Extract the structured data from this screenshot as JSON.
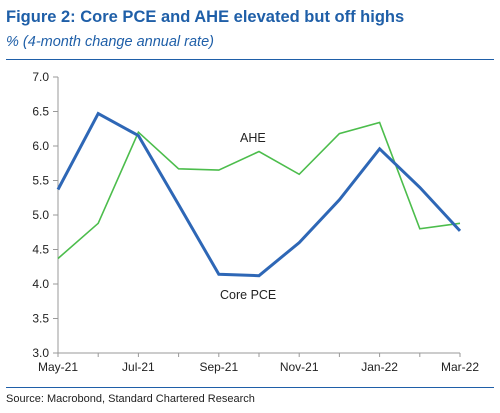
{
  "header": {
    "title": "Figure 2: Core PCE and AHE elevated but off highs",
    "subtitle": "% (4-month change annual rate)"
  },
  "footer": {
    "source": "Source: Macrobond, Standard Chartered Research"
  },
  "colors": {
    "title": "#1f5fa8",
    "core_pce": "#2e67b6",
    "ahe": "#4cbd4c",
    "axis": "#999999"
  },
  "chart_data": {
    "type": "line",
    "title": "Figure 2: Core PCE and AHE elevated but off highs",
    "subtitle": "% (4-month change annual rate)",
    "ylim": [
      3.0,
      7.0
    ],
    "yticks": [
      "7.0",
      "6.5",
      "6.0",
      "5.5",
      "5.0",
      "4.5",
      "4.0",
      "3.5",
      "3.0"
    ],
    "ytick_values": [
      7.0,
      6.5,
      6.0,
      5.5,
      5.0,
      4.5,
      4.0,
      3.5,
      3.0
    ],
    "x": [
      "May-21",
      "Jun-21",
      "Jul-21",
      "Aug-21",
      "Sep-21",
      "Oct-21",
      "Nov-21",
      "Dec-21",
      "Jan-22",
      "Feb-22",
      "Mar-22"
    ],
    "xticks": [
      "May-21",
      "Jul-21",
      "Sep-21",
      "Nov-21",
      "Jan-22",
      "Mar-22"
    ],
    "xtick_index": [
      0,
      2,
      4,
      6,
      8,
      10
    ],
    "grid": false,
    "legend": "inline labels",
    "series": [
      {
        "name": "Core PCE",
        "values": [
          5.37,
          6.47,
          6.15,
          5.15,
          4.14,
          4.12,
          4.6,
          5.22,
          5.96,
          5.4,
          4.77
        ]
      },
      {
        "name": "AHE",
        "values": [
          4.37,
          4.88,
          6.2,
          5.67,
          5.65,
          5.92,
          5.59,
          6.18,
          6.34,
          4.8,
          4.88
        ]
      }
    ]
  }
}
